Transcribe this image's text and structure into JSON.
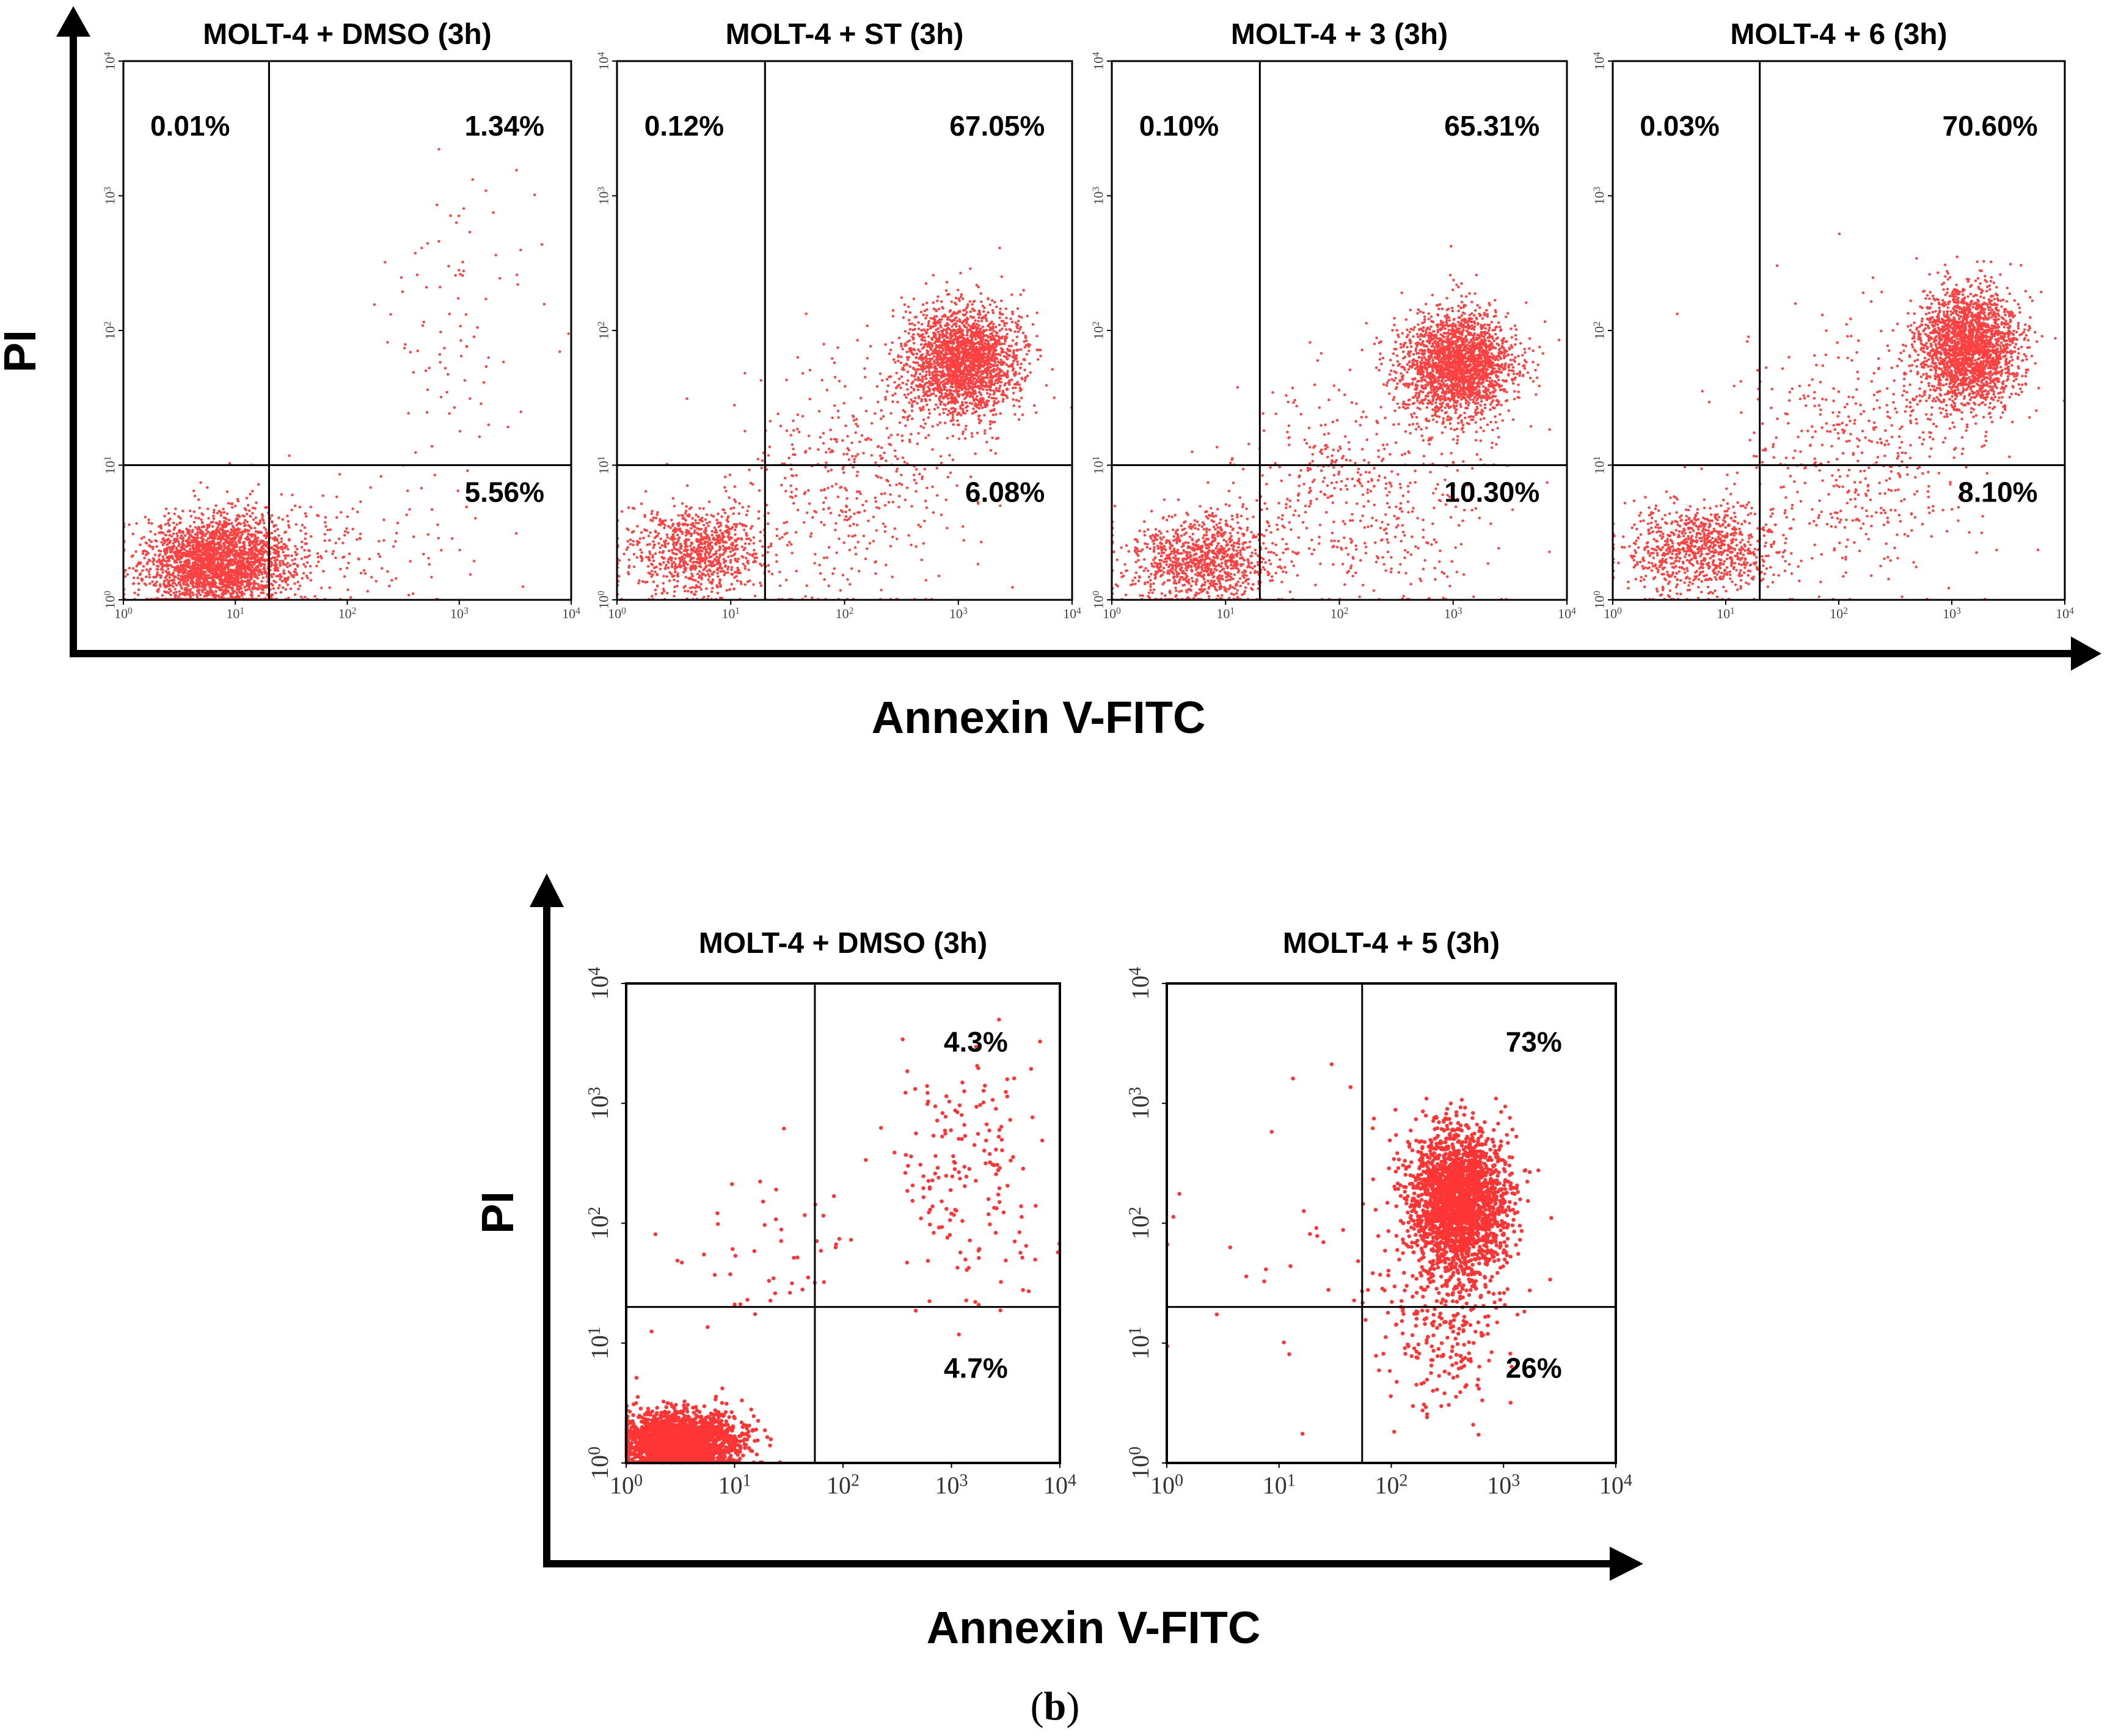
{
  "figure": {
    "colors": {
      "dots": "#ff2020",
      "axis": "#000000",
      "frame": "#000000",
      "tick_text": "#444444"
    },
    "caption": {
      "open": "(",
      "letter": "b",
      "close": ")"
    }
  },
  "chart_data": [
    {
      "type": "scatter",
      "group": "top-row",
      "panel_index": 0,
      "title": "MOLT-4 + DMSO (3h)",
      "xlabel": "Annexin V-FITC",
      "ylabel": "PI",
      "xscale": "log",
      "yscale": "log",
      "xlim": [
        1,
        10000
      ],
      "ylim": [
        1,
        10000
      ],
      "x_ticks": [
        {
          "base": "10",
          "exp": "0",
          "value": 1
        },
        {
          "base": "10",
          "exp": "1",
          "value": 10
        },
        {
          "base": "10",
          "exp": "2",
          "value": 100
        },
        {
          "base": "10",
          "exp": "3",
          "value": 1000
        },
        {
          "base": "10",
          "exp": "4",
          "value": 10000
        }
      ],
      "y_ticks": [
        {
          "base": "10",
          "exp": "0",
          "value": 1
        },
        {
          "base": "10",
          "exp": "1",
          "value": 10
        },
        {
          "base": "10",
          "exp": "2",
          "value": 100
        },
        {
          "base": "10",
          "exp": "3",
          "value": 1000
        },
        {
          "base": "10",
          "exp": "4",
          "value": 10000
        }
      ],
      "quadrant_gate": {
        "x": 20,
        "y": 10
      },
      "quadrants": {
        "upper_left": "0.01%",
        "upper_right": "1.34%",
        "lower_left": "",
        "lower_right": "5.56%"
      },
      "populations": [
        {
          "center_x": 7,
          "center_y": 1.9,
          "spread_x": 0.32,
          "spread_y": 0.17,
          "count": 2600
        },
        {
          "center_x": 90,
          "center_y": 2.5,
          "spread_x": 0.6,
          "spread_y": 0.25,
          "count": 180
        },
        {
          "center_x": 900,
          "center_y": 120,
          "spread_x": 0.35,
          "spread_y": 0.55,
          "count": 90
        }
      ]
    },
    {
      "type": "scatter",
      "group": "top-row",
      "panel_index": 1,
      "title": "MOLT-4 + ST (3h)",
      "xlabel": "Annexin V-FITC",
      "ylabel": "PI",
      "xscale": "log",
      "yscale": "log",
      "xlim": [
        1,
        10000
      ],
      "ylim": [
        1,
        10000
      ],
      "x_ticks": [
        {
          "base": "10",
          "exp": "0",
          "value": 1
        },
        {
          "base": "10",
          "exp": "1",
          "value": 10
        },
        {
          "base": "10",
          "exp": "2",
          "value": 100
        },
        {
          "base": "10",
          "exp": "3",
          "value": 1000
        },
        {
          "base": "10",
          "exp": "4",
          "value": 10000
        }
      ],
      "y_ticks": [
        {
          "base": "10",
          "exp": "0",
          "value": 1
        },
        {
          "base": "10",
          "exp": "1",
          "value": 10
        },
        {
          "base": "10",
          "exp": "2",
          "value": 100
        },
        {
          "base": "10",
          "exp": "3",
          "value": 1000
        },
        {
          "base": "10",
          "exp": "4",
          "value": 10000
        }
      ],
      "quadrant_gate": {
        "x": 20,
        "y": 10
      },
      "quadrants": {
        "upper_left": "0.12%",
        "upper_right": "67.05%",
        "lower_left": "",
        "lower_right": "6.08%"
      },
      "populations": [
        {
          "center_x": 1100,
          "center_y": 60,
          "spread_x": 0.25,
          "spread_y": 0.2,
          "count": 2200
        },
        {
          "center_x": 5,
          "center_y": 2.3,
          "spread_x": 0.3,
          "spread_y": 0.17,
          "count": 900
        },
        {
          "center_x": 120,
          "center_y": 8,
          "spread_x": 0.55,
          "spread_y": 0.45,
          "count": 450
        }
      ]
    },
    {
      "type": "scatter",
      "group": "top-row",
      "panel_index": 2,
      "title": "MOLT-4 + 3 (3h)",
      "xlabel": "Annexin V-FITC",
      "ylabel": "PI",
      "xscale": "log",
      "yscale": "log",
      "xlim": [
        1,
        10000
      ],
      "ylim": [
        1,
        10000
      ],
      "x_ticks": [
        {
          "base": "10",
          "exp": "0",
          "value": 1
        },
        {
          "base": "10",
          "exp": "1",
          "value": 10
        },
        {
          "base": "10",
          "exp": "2",
          "value": 100
        },
        {
          "base": "10",
          "exp": "3",
          "value": 1000
        },
        {
          "base": "10",
          "exp": "4",
          "value": 10000
        }
      ],
      "y_ticks": [
        {
          "base": "10",
          "exp": "0",
          "value": 1
        },
        {
          "base": "10",
          "exp": "1",
          "value": 10
        },
        {
          "base": "10",
          "exp": "2",
          "value": 100
        },
        {
          "base": "10",
          "exp": "3",
          "value": 1000
        },
        {
          "base": "10",
          "exp": "4",
          "value": 10000
        }
      ],
      "quadrant_gate": {
        "x": 20,
        "y": 10
      },
      "quadrants": {
        "upper_left": "0.10%",
        "upper_right": "65.31%",
        "lower_left": "",
        "lower_right": "10.30%"
      },
      "populations": [
        {
          "center_x": 1100,
          "center_y": 55,
          "spread_x": 0.25,
          "spread_y": 0.2,
          "count": 2200
        },
        {
          "center_x": 6,
          "center_y": 2,
          "spread_x": 0.33,
          "spread_y": 0.17,
          "count": 1000
        },
        {
          "center_x": 150,
          "center_y": 6,
          "spread_x": 0.55,
          "spread_y": 0.4,
          "count": 500
        }
      ]
    },
    {
      "type": "scatter",
      "group": "top-row",
      "panel_index": 3,
      "title": "MOLT-4 + 6 (3h)",
      "xlabel": "Annexin V-FITC",
      "ylabel": "PI",
      "xscale": "log",
      "yscale": "log",
      "xlim": [
        1,
        10000
      ],
      "ylim": [
        1,
        10000
      ],
      "x_ticks": [
        {
          "base": "10",
          "exp": "0",
          "value": 1
        },
        {
          "base": "10",
          "exp": "1",
          "value": 10
        },
        {
          "base": "10",
          "exp": "2",
          "value": 100
        },
        {
          "base": "10",
          "exp": "3",
          "value": 1000
        },
        {
          "base": "10",
          "exp": "4",
          "value": 10000
        }
      ],
      "y_ticks": [
        {
          "base": "10",
          "exp": "0",
          "value": 1
        },
        {
          "base": "10",
          "exp": "1",
          "value": 10
        },
        {
          "base": "10",
          "exp": "2",
          "value": 100
        },
        {
          "base": "10",
          "exp": "3",
          "value": 1000
        },
        {
          "base": "10",
          "exp": "4",
          "value": 10000
        }
      ],
      "quadrant_gate": {
        "x": 20,
        "y": 10
      },
      "quadrants": {
        "upper_left": "0.03%",
        "upper_right": "70.60%",
        "lower_left": "",
        "lower_right": "8.10%"
      },
      "populations": [
        {
          "center_x": 1400,
          "center_y": 75,
          "spread_x": 0.22,
          "spread_y": 0.22,
          "count": 2300
        },
        {
          "center_x": 6,
          "center_y": 2.4,
          "spread_x": 0.33,
          "spread_y": 0.17,
          "count": 900
        },
        {
          "center_x": 150,
          "center_y": 12,
          "spread_x": 0.55,
          "spread_y": 0.5,
          "count": 500
        }
      ]
    },
    {
      "type": "scatter",
      "group": "bottom-row",
      "panel_index": 0,
      "title": "MOLT-4 + DMSO (3h)",
      "xlabel": "Annexin V-FITC",
      "ylabel": "PI",
      "xscale": "log",
      "yscale": "log",
      "xlim": [
        1,
        10000
      ],
      "ylim": [
        1,
        10000
      ],
      "x_ticks": [
        {
          "base": "10",
          "exp": "0",
          "value": 1
        },
        {
          "base": "10",
          "exp": "1",
          "value": 10
        },
        {
          "base": "10",
          "exp": "2",
          "value": 100
        },
        {
          "base": "10",
          "exp": "3",
          "value": 1000
        },
        {
          "base": "10",
          "exp": "4",
          "value": 10000
        }
      ],
      "y_ticks": [
        {
          "base": "10",
          "exp": "0",
          "value": 1
        },
        {
          "base": "10",
          "exp": "1",
          "value": 10
        },
        {
          "base": "10",
          "exp": "2",
          "value": 100
        },
        {
          "base": "10",
          "exp": "3",
          "value": 1000
        },
        {
          "base": "10",
          "exp": "4",
          "value": 10000
        }
      ],
      "quadrant_gate": {
        "x": 55,
        "y": 20
      },
      "quadrants": {
        "upper_left": "",
        "upper_right": "4.3%",
        "lower_left": "",
        "lower_right": "4.7%"
      },
      "populations": [
        {
          "center_x": 3,
          "center_y": 1.5,
          "spread_x": 0.28,
          "spread_y": 0.12,
          "count": 2200
        },
        {
          "center_x": 1500,
          "center_y": 300,
          "spread_x": 0.35,
          "spread_y": 0.55,
          "count": 170
        },
        {
          "center_x": 20,
          "center_y": 60,
          "spread_x": 0.5,
          "spread_y": 0.4,
          "count": 50
        }
      ]
    },
    {
      "type": "scatter",
      "group": "bottom-row",
      "panel_index": 1,
      "title": "MOLT-4 + 5 (3h)",
      "xlabel": "Annexin V-FITC",
      "ylabel": "PI",
      "xscale": "log",
      "yscale": "log",
      "xlim": [
        1,
        10000
      ],
      "ylim": [
        1,
        10000
      ],
      "x_ticks": [
        {
          "base": "10",
          "exp": "0",
          "value": 1
        },
        {
          "base": "10",
          "exp": "1",
          "value": 10
        },
        {
          "base": "10",
          "exp": "2",
          "value": 100
        },
        {
          "base": "10",
          "exp": "3",
          "value": 1000
        },
        {
          "base": "10",
          "exp": "4",
          "value": 10000
        }
      ],
      "y_ticks": [
        {
          "base": "10",
          "exp": "0",
          "value": 1
        },
        {
          "base": "10",
          "exp": "1",
          "value": 10
        },
        {
          "base": "10",
          "exp": "2",
          "value": 100
        },
        {
          "base": "10",
          "exp": "3",
          "value": 1000
        },
        {
          "base": "10",
          "exp": "4",
          "value": 10000
        }
      ],
      "quadrant_gate": {
        "x": 55,
        "y": 20
      },
      "quadrants": {
        "upper_left": "",
        "upper_right": "73%",
        "lower_left": "",
        "lower_right": "26%"
      },
      "populations": [
        {
          "center_x": 400,
          "center_y": 150,
          "spread_x": 0.22,
          "spread_y": 0.3,
          "count": 2200
        },
        {
          "center_x": 300,
          "center_y": 15,
          "spread_x": 0.3,
          "spread_y": 0.35,
          "count": 250
        },
        {
          "center_x": 50,
          "center_y": 50,
          "spread_x": 0.8,
          "spread_y": 0.8,
          "count": 40
        }
      ]
    }
  ],
  "axes_titles": {
    "top_x": "Annexin V-FITC",
    "top_y": "PI",
    "bottom_x": "Annexin V-FITC",
    "bottom_y": "PI"
  }
}
